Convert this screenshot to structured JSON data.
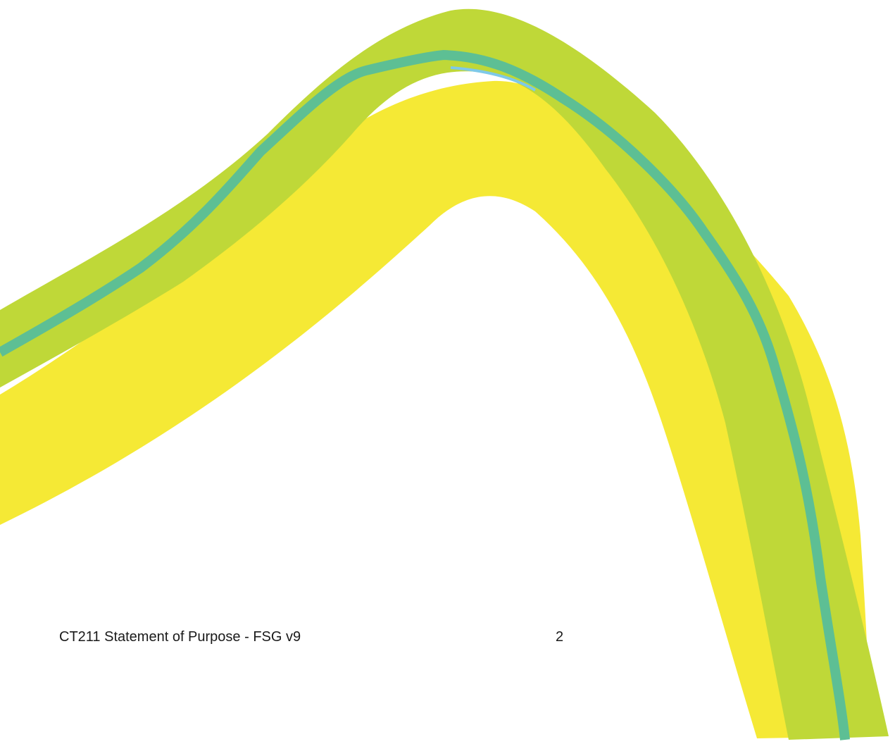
{
  "footer": {
    "title": "CT211 Statement of Purpose - FSG v9",
    "page_number": "2"
  }
}
